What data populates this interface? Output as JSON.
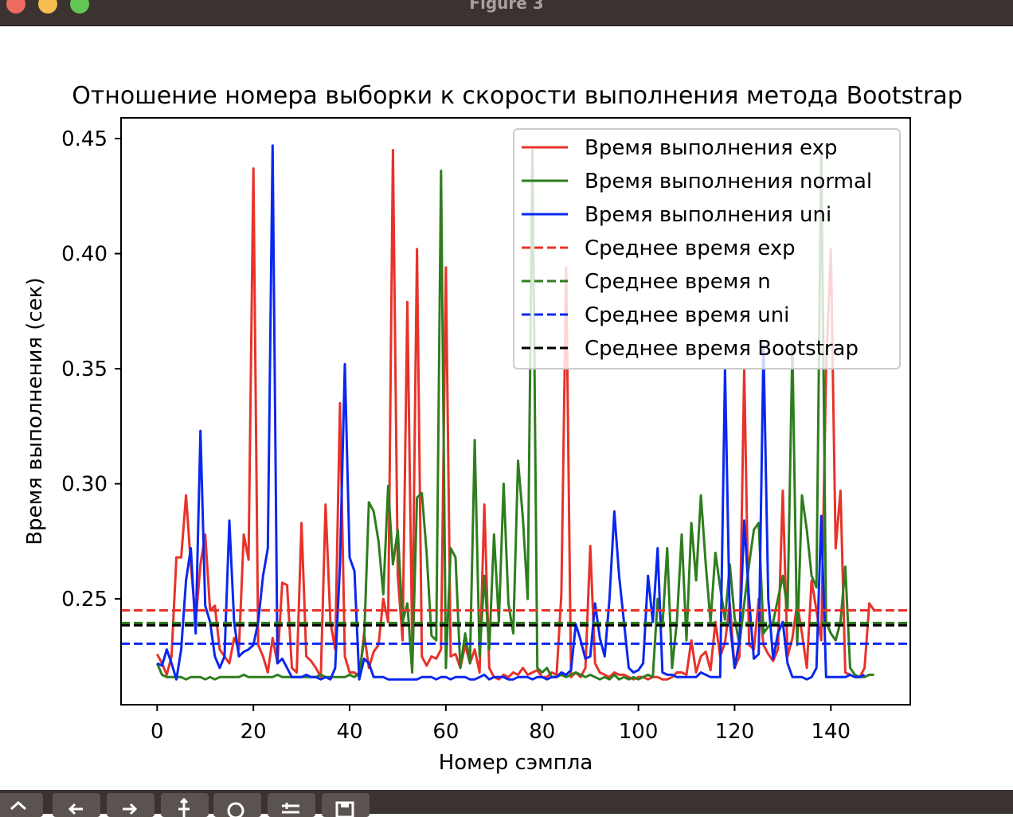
{
  "window": {
    "title": "Figure 3"
  },
  "toolbar": {
    "icons": [
      "home-icon",
      "back-icon",
      "forward-icon",
      "pan-icon",
      "zoom-icon",
      "configure-icon",
      "save-icon"
    ]
  },
  "chart_data": {
    "type": "line",
    "title": "Отношение номера выборки к скорости выполнения метода Bootstrap",
    "xlabel": "Номер сэмпла",
    "ylabel": "Время выполнения (сек)",
    "xlim": [
      -7.5,
      156.5
    ],
    "ylim": [
      0.204,
      0.459
    ],
    "xticks": [
      0,
      20,
      40,
      60,
      80,
      100,
      120,
      140
    ],
    "yticks": [
      0.25,
      0.3,
      0.35,
      0.4,
      0.45
    ],
    "ytick_labels": [
      "0.25",
      "0.30",
      "0.35",
      "0.40",
      "0.45"
    ],
    "grid": false,
    "legend_position": "upper right",
    "series": [
      {
        "name": "Время выполнения exp",
        "color": "#e8322a",
        "style": "solid",
        "values": [
          0.226,
          0.222,
          0.217,
          0.225,
          0.268,
          0.268,
          0.295,
          0.265,
          0.24,
          0.265,
          0.278,
          0.245,
          0.247,
          0.228,
          0.225,
          0.222,
          0.233,
          0.228,
          0.278,
          0.267,
          0.437,
          0.23,
          0.225,
          0.218,
          0.233,
          0.222,
          0.257,
          0.256,
          0.22,
          0.218,
          0.283,
          0.225,
          0.223,
          0.22,
          0.216,
          0.291,
          0.24,
          0.228,
          0.335,
          0.225,
          0.218,
          0.218,
          0.216,
          0.235,
          0.22,
          0.227,
          0.23,
          0.25,
          0.24,
          0.445,
          0.26,
          0.232,
          0.379,
          0.23,
          0.402,
          0.225,
          0.221,
          0.225,
          0.224,
          0.228,
          0.394,
          0.225,
          0.226,
          0.22,
          0.23,
          0.222,
          0.228,
          0.218,
          0.291,
          0.22,
          0.216,
          0.215,
          0.217,
          0.216,
          0.218,
          0.217,
          0.22,
          0.217,
          0.218,
          0.219,
          0.216,
          0.216,
          0.218,
          0.217,
          0.252,
          0.394,
          0.216,
          0.218,
          0.216,
          0.22,
          0.273,
          0.222,
          0.218,
          0.217,
          0.216,
          0.218,
          0.217,
          0.217,
          0.216,
          0.215,
          0.216,
          0.216,
          0.215,
          0.216,
          0.216,
          0.215,
          0.215,
          0.216,
          0.218,
          0.218,
          0.217,
          0.232,
          0.218,
          0.225,
          0.227,
          0.219,
          0.24,
          0.225,
          0.231,
          0.248,
          0.22,
          0.225,
          0.35,
          0.23,
          0.228,
          0.25,
          0.23,
          0.226,
          0.223,
          0.228,
          0.297,
          0.225,
          0.233,
          0.248,
          0.235,
          0.22,
          0.258,
          0.245,
          0.232,
          0.35,
          0.402,
          0.272,
          0.297,
          0.218,
          0.217,
          0.216,
          0.216,
          0.22,
          0.248,
          0.245
        ]
      },
      {
        "name": "Время выполнения normal",
        "color": "#2e7d1e",
        "style": "solid",
        "values": [
          0.222,
          0.217,
          0.216,
          0.216,
          0.216,
          0.216,
          0.215,
          0.216,
          0.216,
          0.216,
          0.215,
          0.216,
          0.215,
          0.216,
          0.216,
          0.216,
          0.216,
          0.216,
          0.217,
          0.216,
          0.216,
          0.216,
          0.216,
          0.216,
          0.216,
          0.217,
          0.216,
          0.216,
          0.216,
          0.216,
          0.216,
          0.216,
          0.216,
          0.216,
          0.217,
          0.216,
          0.216,
          0.216,
          0.216,
          0.216,
          0.217,
          0.216,
          0.218,
          0.232,
          0.292,
          0.288,
          0.275,
          0.252,
          0.299,
          0.265,
          0.28,
          0.24,
          0.248,
          0.218,
          0.294,
          0.296,
          0.27,
          0.234,
          0.232,
          0.436,
          0.22,
          0.272,
          0.268,
          0.22,
          0.235,
          0.222,
          0.319,
          0.225,
          0.26,
          0.228,
          0.278,
          0.24,
          0.3,
          0.248,
          0.235,
          0.31,
          0.285,
          0.25,
          0.445,
          0.22,
          0.218,
          0.22,
          0.216,
          0.216,
          0.217,
          0.216,
          0.217,
          0.218,
          0.217,
          0.216,
          0.217,
          0.216,
          0.215,
          0.216,
          0.215,
          0.217,
          0.215,
          0.216,
          0.215,
          0.216,
          0.215,
          0.216,
          0.217,
          0.216,
          0.25,
          0.238,
          0.272,
          0.22,
          0.24,
          0.278,
          0.232,
          0.283,
          0.258,
          0.295,
          0.265,
          0.24,
          0.27,
          0.255,
          0.241,
          0.265,
          0.242,
          0.23,
          0.248,
          0.265,
          0.28,
          0.283,
          0.235,
          0.238,
          0.24,
          0.25,
          0.26,
          0.245,
          0.36,
          0.23,
          0.295,
          0.28,
          0.26,
          0.255,
          0.445,
          0.24,
          0.235,
          0.232,
          0.24,
          0.264,
          0.22,
          0.217,
          0.216,
          0.216,
          0.217,
          0.217
        ]
      },
      {
        "name": "Время выполнения uni",
        "color": "#0a27f0",
        "style": "solid",
        "values": [
          0.222,
          0.221,
          0.228,
          0.222,
          0.215,
          0.228,
          0.258,
          0.272,
          0.235,
          0.323,
          0.247,
          0.24,
          0.225,
          0.22,
          0.225,
          0.284,
          0.24,
          0.225,
          0.227,
          0.228,
          0.23,
          0.24,
          0.26,
          0.272,
          0.447,
          0.222,
          0.224,
          0.22,
          0.216,
          0.216,
          0.216,
          0.217,
          0.216,
          0.216,
          0.215,
          0.216,
          0.215,
          0.22,
          0.265,
          0.352,
          0.268,
          0.262,
          0.215,
          0.224,
          0.222,
          0.216,
          0.216,
          0.216,
          0.215,
          0.215,
          0.215,
          0.215,
          0.215,
          0.215,
          0.215,
          0.216,
          0.216,
          0.216,
          0.215,
          0.216,
          0.216,
          0.215,
          0.216,
          0.216,
          0.216,
          0.215,
          0.215,
          0.216,
          0.217,
          0.215,
          0.216,
          0.216,
          0.216,
          0.215,
          0.215,
          0.216,
          0.216,
          0.216,
          0.215,
          0.216,
          0.216,
          0.215,
          0.216,
          0.216,
          0.218,
          0.217,
          0.219,
          0.239,
          0.232,
          0.224,
          0.225,
          0.248,
          0.233,
          0.225,
          0.25,
          0.288,
          0.26,
          0.24,
          0.22,
          0.218,
          0.219,
          0.222,
          0.26,
          0.24,
          0.272,
          0.218,
          0.217,
          0.217,
          0.216,
          0.216,
          0.216,
          0.216,
          0.216,
          0.218,
          0.217,
          0.216,
          0.216,
          0.216,
          0.35,
          0.24,
          0.22,
          0.232,
          0.284,
          0.25,
          0.224,
          0.226,
          0.36,
          0.25,
          0.224,
          0.235,
          0.24,
          0.222,
          0.216,
          0.216,
          0.216,
          0.215,
          0.216,
          0.22,
          0.286,
          0.216,
          0.216,
          0.216,
          0.216,
          0.216,
          0.217,
          0.216,
          0.216,
          0.217
        ]
      }
    ],
    "hlines": [
      {
        "name": "Среднее время exp",
        "color": "#e8322a",
        "style": "dashed",
        "y": 0.245
      },
      {
        "name": "Среднее время n",
        "color": "#2e7d1e",
        "style": "dashed",
        "y": 0.2395
      },
      {
        "name": "Среднее время uni",
        "color": "#0a27f0",
        "style": "dashed",
        "y": 0.2305
      },
      {
        "name": "Среднее время Bootstrap",
        "color": "#000000",
        "style": "dashed",
        "y": 0.2385
      }
    ]
  }
}
